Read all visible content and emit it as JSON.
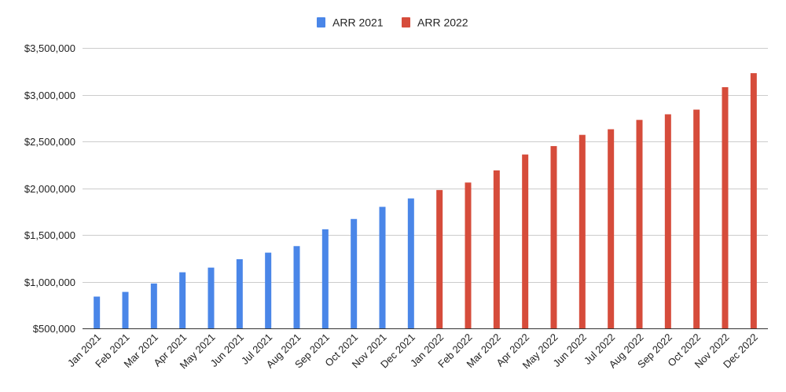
{
  "chart_data": {
    "type": "bar",
    "title": "",
    "xlabel": "",
    "ylabel": "",
    "ylim": [
      500000,
      3500000
    ],
    "yticks": [
      500000,
      1000000,
      1500000,
      2000000,
      2500000,
      3000000,
      3500000
    ],
    "ytick_labels": [
      "$500,000",
      "$1,000,000",
      "$1,500,000",
      "$2,000,000",
      "$2,500,000",
      "$3,000,000",
      "$3,500,000"
    ],
    "grid": true,
    "legend_position": "top-center",
    "categories": [
      "Jan 2021",
      "Feb 2021",
      "Mar 2021",
      "Apr 2021",
      "May 2021",
      "Jun 2021",
      "Jul 2021",
      "Aug 2021",
      "Sep 2021",
      "Oct 2021",
      "Nov 2021",
      "Dec 2021",
      "Jan 2022",
      "Feb 2022",
      "Mar 2022",
      "Apr 2022",
      "May 2022",
      "Jun 2022",
      "Jul 2022",
      "Aug 2022",
      "Sep 2022",
      "Oct 2022",
      "Nov 2022",
      "Dec 2022"
    ],
    "series": [
      {
        "name": "ARR 2021",
        "color": "#4a86e8",
        "values": [
          840000,
          890000,
          980000,
          1100000,
          1150000,
          1240000,
          1310000,
          1380000,
          1560000,
          1670000,
          1800000,
          1890000,
          null,
          null,
          null,
          null,
          null,
          null,
          null,
          null,
          null,
          null,
          null,
          null
        ]
      },
      {
        "name": "ARR 2022",
        "color": "#d64c3b",
        "values": [
          null,
          null,
          null,
          null,
          null,
          null,
          null,
          null,
          null,
          null,
          null,
          null,
          1980000,
          2060000,
          2190000,
          2360000,
          2450000,
          2570000,
          2630000,
          2730000,
          2790000,
          2840000,
          3080000,
          3230000
        ]
      }
    ]
  }
}
